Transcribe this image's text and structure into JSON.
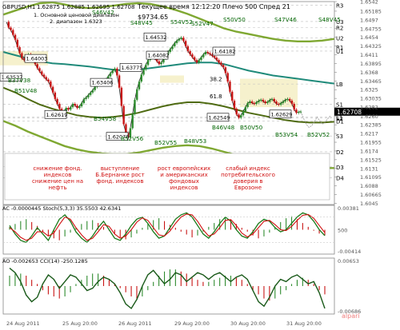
{
  "header": {
    "symbol": "GBPUSD,H1",
    "ohlc": "1.62875 1.62885 1.62695 1.62708",
    "subtitle_1": "1. Основной ценовой диапазон",
    "subtitle_2": "2. диапазон 1.6323",
    "info": "Текущее время 12:12:20 Плечо 500 Спред 21",
    "balance": "$9734.65"
  },
  "chart_data": [
    {
      "type": "line",
      "title": "GBPUSD,H1",
      "ylim": [
        1.6042,
        1.6542
      ],
      "price_ticks": [
        "1.6542",
        "1.65185",
        "1.6497",
        "1.64755",
        "1.6454",
        "1.64325",
        "1.6411",
        "1.63895",
        "1.6368",
        "1.63465",
        "1.6325",
        "1.63035",
        "1.6282",
        "1.6260",
        "1.62385",
        "1.6217",
        "1.61955",
        "1.6174",
        "1.61525",
        "1.6131",
        "1.61095",
        "1.6088",
        "1.60665",
        "1.6045"
      ],
      "current_price": "1.62708",
      "level_labels": [
        "R3",
        "U3",
        "R2",
        "U2",
        "R1",
        "U1",
        "LB",
        "S1",
        "L1",
        "S2",
        "D1",
        "S3",
        "D2",
        "D3",
        "D4"
      ],
      "level_values": [
        1.6533,
        1.6493,
        1.6478,
        1.6452,
        1.643,
        1.642,
        1.6339,
        1.6289,
        1.6258,
        1.6255,
        1.6248,
        1.6211,
        1.6172,
        1.6135,
        1.6108
      ],
      "price_labels": [
        "1.64003",
        "1.63406",
        "1.62619",
        "1.62078",
        "1.63775",
        "1.64082",
        "1.64532",
        "1.64182",
        "1.62549",
        "1.62629",
        "1.63537"
      ],
      "price_label_values": [
        1.64,
        1.6341,
        1.6262,
        1.6208,
        1.6378,
        1.6408,
        1.6453,
        1.6418,
        1.6255,
        1.6263,
        1.6354
      ],
      "level_value_labels": [
        "38.2",
        "61.8"
      ],
      "level_value_values": [
        1.6352,
        1.631
      ],
      "annotations": [
        "B37V38",
        "B51V48",
        "B54V58",
        "B52V56",
        "B52V55",
        "B48V53",
        "S46V42",
        "S48V45",
        "S54V52",
        "S52V47",
        "S50V50",
        "S47V46",
        "S48V45",
        "B46V48",
        "B50V50",
        "B53V54",
        "B52V52"
      ],
      "close": [
        1.6492,
        1.6478,
        1.6472,
        1.646,
        1.6448,
        1.643,
        1.6415,
        1.6402,
        1.6398,
        1.6402,
        1.6412,
        1.6408,
        1.6398,
        1.6388,
        1.6378,
        1.637,
        1.6362,
        1.6356,
        1.635,
        1.6345,
        1.6332,
        1.6318,
        1.6302,
        1.629,
        1.6278,
        1.627,
        1.6272,
        1.628,
        1.6276,
        1.6282,
        1.629,
        1.6286,
        1.628,
        1.6284,
        1.6292,
        1.6302,
        1.6306,
        1.6312,
        1.6318,
        1.6324,
        1.6332,
        1.6338,
        1.634,
        1.6338,
        1.6342,
        1.635,
        1.6358,
        1.6366,
        1.6372,
        1.6377,
        1.636,
        1.633,
        1.6285,
        1.624,
        1.6218,
        1.6208,
        1.623,
        1.6265,
        1.63,
        1.6326,
        1.6345,
        1.6362,
        1.6375,
        1.6386,
        1.6398,
        1.6405,
        1.6408,
        1.6402,
        1.6395,
        1.6388,
        1.6392,
        1.6402,
        1.641,
        1.6418,
        1.6425,
        1.6432,
        1.644,
        1.6446,
        1.645,
        1.6453,
        1.6445,
        1.6432,
        1.642,
        1.6412,
        1.6405,
        1.6398,
        1.6392,
        1.6398,
        1.6405,
        1.6412,
        1.6418,
        1.6415,
        1.6412,
        1.6408,
        1.6404,
        1.6398,
        1.6392,
        1.6386,
        1.638,
        1.6366,
        1.6345,
        1.632,
        1.6298,
        1.6278,
        1.6264,
        1.6256,
        1.6262,
        1.6272,
        1.6282,
        1.6292,
        1.6296,
        1.6292,
        1.629,
        1.6294,
        1.6298,
        1.63,
        1.6296,
        1.6292,
        1.6295,
        1.63,
        1.6302,
        1.6296,
        1.629,
        1.6288,
        1.6292,
        1.6296,
        1.63,
        1.6302,
        1.6298,
        1.629,
        1.6276,
        1.6268,
        1.627,
        1.6271
      ],
      "mas": [
        {
          "name": "teal",
          "color": "#1f8a7a",
          "values": [
            1.6418,
            1.641,
            1.6402,
            1.6395,
            1.639,
            1.6388,
            1.6385,
            1.6382,
            1.6378,
            1.6374,
            1.6372,
            1.6374,
            1.6378,
            1.6382,
            1.6386,
            1.639,
            1.6392,
            1.6392,
            1.6388,
            1.638,
            1.6372,
            1.6366,
            1.636,
            1.6356,
            1.6352,
            1.6348,
            1.6344,
            1.634
          ]
        },
        {
          "name": "olive",
          "color": "#4f6b12",
          "values": [
            1.633,
            1.6318,
            1.6302,
            1.6288,
            1.6278,
            1.627,
            1.6262,
            1.6258,
            1.6256,
            1.6258,
            1.6262,
            1.6268,
            1.6276,
            1.6284,
            1.629,
            1.6294,
            1.6294,
            1.629,
            1.6284,
            1.6276,
            1.6268,
            1.6262,
            1.6256,
            1.625,
            1.6246,
            1.6244,
            1.6244,
            1.6246
          ]
        },
        {
          "name": "upper",
          "color": "#7fa832",
          "values": [
            1.651,
            1.652,
            1.653,
            1.6538,
            1.654,
            1.6535,
            1.6528,
            1.6526,
            1.6528,
            1.6532,
            1.6536,
            1.6538,
            1.6536,
            1.653,
            1.6522,
            1.6512,
            1.65,
            1.6488,
            1.6476,
            1.6468,
            1.6462,
            1.6456,
            1.645,
            1.6446,
            1.6444,
            1.6444,
            1.6446,
            1.645
          ]
        },
        {
          "name": "lower",
          "color": "#7fa832",
          "values": [
            1.6248,
            1.6236,
            1.6222,
            1.621,
            1.6198,
            1.6186,
            1.6178,
            1.6172,
            1.6168,
            1.6166,
            1.6166,
            1.617,
            1.6176,
            1.6182,
            1.6186,
            1.6188,
            1.6186,
            1.618,
            1.6172,
            1.6164,
            1.6156,
            1.615,
            1.6144,
            1.614,
            1.6136,
            1.6134,
            1.6132,
            1.6132
          ]
        }
      ],
      "forecast": [
        1.6271,
        1.6255,
        1.624,
        1.6232,
        1.6236,
        1.6246,
        1.6258,
        1.6248,
        1.624,
        1.6246,
        1.6254,
        1.6262
      ],
      "news": [
        {
          "text": "снижение фонд. индексов снижение цен на нефть"
        },
        {
          "text": "выступление Б.Бернанке рост фонд. индексов"
        },
        {
          "text": "рост европейских и американских фондовых индексов"
        },
        {
          "text": "слабый индекс потребительского доверия в Еврозоне"
        }
      ]
    },
    {
      "type": "line",
      "title": "AC -0.0000445  Stoch(5,3,3) 35.5503 42.6341",
      "ylim": [
        -0.0041,
        0.0038
      ],
      "right_ticks": [
        "0.00381",
        "500",
        "-0.00414"
      ],
      "stoch_main": [
        0.6,
        0.4,
        0.25,
        0.2,
        0.35,
        0.55,
        0.4,
        0.25,
        0.5,
        0.75,
        0.85,
        0.7,
        0.45,
        0.3,
        0.2,
        0.35,
        0.55,
        0.7,
        0.5,
        0.3,
        0.25,
        0.4,
        0.6,
        0.75,
        0.8,
        0.65,
        0.45,
        0.3,
        0.35,
        0.55,
        0.75,
        0.85,
        0.9,
        0.8,
        0.6,
        0.4,
        0.3,
        0.45,
        0.65,
        0.8,
        0.7,
        0.5,
        0.35,
        0.3,
        0.45,
        0.65,
        0.75,
        0.7,
        0.55,
        0.45,
        0.5,
        0.65,
        0.8,
        0.9,
        0.85,
        0.7,
        0.5,
        0.36
      ],
      "stoch_signal": [
        0.55,
        0.45,
        0.32,
        0.25,
        0.3,
        0.45,
        0.45,
        0.35,
        0.42,
        0.62,
        0.8,
        0.75,
        0.55,
        0.38,
        0.25,
        0.3,
        0.45,
        0.62,
        0.58,
        0.4,
        0.3,
        0.35,
        0.5,
        0.68,
        0.78,
        0.72,
        0.55,
        0.38,
        0.35,
        0.47,
        0.65,
        0.8,
        0.87,
        0.85,
        0.7,
        0.5,
        0.35,
        0.4,
        0.55,
        0.72,
        0.74,
        0.6,
        0.42,
        0.33,
        0.4,
        0.55,
        0.7,
        0.72,
        0.62,
        0.5,
        0.48,
        0.58,
        0.72,
        0.84,
        0.86,
        0.77,
        0.6,
        0.43
      ],
      "ac_bars": [
        0.3,
        0.6,
        0.9,
        1.1,
        0.8,
        0.4,
        -0.2,
        -0.6,
        -0.9,
        -1.1,
        -0.7,
        -0.3,
        0.2,
        0.6,
        0.9,
        1.0,
        0.7,
        0.3,
        -0.1,
        -0.4,
        -0.8,
        -1.0,
        -0.8,
        -0.4,
        0.2,
        0.6,
        1.0,
        1.2,
        0.9,
        0.5,
        0.2,
        -0.2,
        -0.5,
        -0.8,
        -0.6,
        -0.2,
        0.3,
        0.7,
        1.1,
        1.3,
        1.0,
        0.6,
        0.2,
        -0.2,
        -0.6,
        -0.9,
        -0.7,
        -0.3,
        0.3,
        0.8,
        1.2,
        1.4,
        1.1,
        0.7,
        0.3,
        -0.1,
        -0.4,
        -0.6
      ]
    },
    {
      "type": "line",
      "title": "AO -0.002653  CCI(14) -250.1285",
      "ylim": [
        -0.0069,
        0.0065
      ],
      "right_ticks": [
        "0.00653",
        "-0.00686"
      ],
      "cci": [
        0.8,
        0.6,
        0.2,
        -0.4,
        -0.7,
        -0.5,
        0.1,
        0.5,
        0.3,
        -0.1,
        0.2,
        0.5,
        0.4,
        0.1,
        -0.2,
        -0.1,
        0.2,
        0.4,
        0.3,
        0.1,
        -0.3,
        -0.8,
        -1.0,
        -0.6,
        0.0,
        0.5,
        0.7,
        0.4,
        0.1,
        0.3,
        0.6,
        0.5,
        0.2,
        0.4,
        0.6,
        0.5,
        0.3,
        0.5,
        0.6,
        0.4,
        0.2,
        0.4,
        0.5,
        0.3,
        -0.2,
        -0.7,
        -0.9,
        -0.5,
        0.0,
        0.3,
        0.2,
        0.4,
        0.5,
        0.3,
        0.1,
        0.2,
        -0.3,
        -1.0
      ],
      "ao_bars": [
        0.5,
        0.6,
        0.6,
        0.5,
        0.3,
        0.1,
        -0.2,
        -0.4,
        -0.5,
        -0.6,
        -0.5,
        -0.3,
        0.1,
        0.3,
        0.5,
        0.6,
        0.6,
        0.5,
        0.3,
        0.1,
        -0.1,
        -0.3,
        -0.5,
        -0.6,
        -0.5,
        -0.2,
        0.2,
        0.5,
        0.7,
        0.8,
        0.8,
        0.7,
        0.6,
        0.4,
        0.3,
        0.2,
        0.2,
        0.3,
        0.4,
        0.5,
        0.5,
        0.4,
        0.3,
        0.1,
        -0.2,
        -0.4,
        -0.6,
        -0.7,
        -0.6,
        -0.4,
        -0.2,
        0.1,
        0.3,
        0.4,
        0.3,
        0.1,
        -0.2,
        -0.4
      ]
    }
  ],
  "dates": [
    "24 Aug 2011",
    "25 Aug 2011",
    "26 Aug 2011",
    "29 Aug 2011",
    "30 Aug 2011",
    "30 Aug 2011",
    "31 Aug 2011",
    "31 Aug 2011"
  ],
  "date_labels": [
    "24 Aug 2011",
    "25 Aug 20:00",
    "26 Aug 2011",
    "29 Aug 20:00",
    "30 Aug 20:00",
    "31 Aug 20:00"
  ],
  "watermark": "alpari",
  "colors": {
    "up": "#2e8b2e",
    "down": "#c81414",
    "accent": "#006400",
    "olive": "#8c9a40",
    "text": "#000000"
  }
}
